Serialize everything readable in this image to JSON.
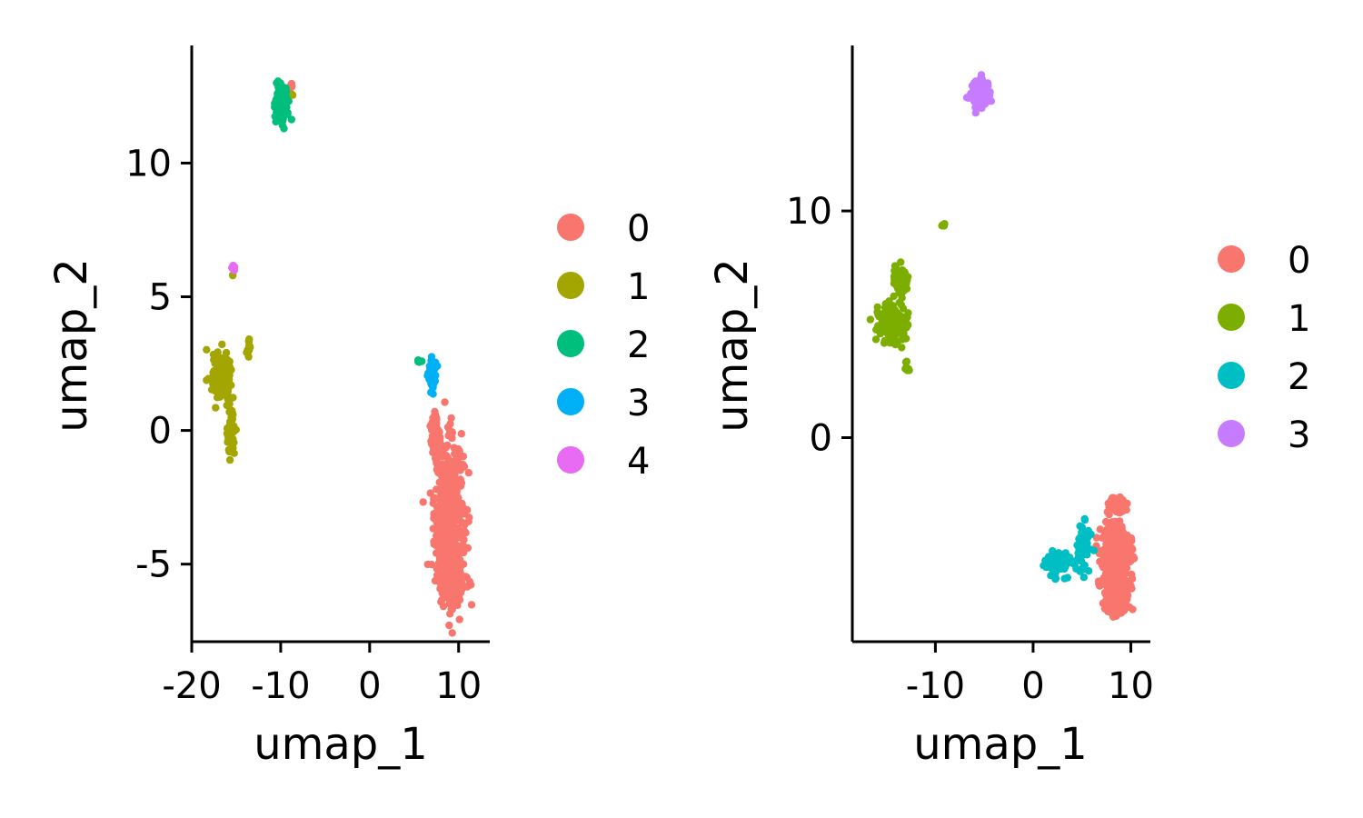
{
  "chart_data": [
    {
      "type": "scatter",
      "xlabel": "umap_1",
      "ylabel": "umap_2",
      "xlim": [
        -20,
        13.5
      ],
      "ylim": [
        -7.9,
        14.4
      ],
      "xticks": [
        -20,
        -10,
        0,
        10
      ],
      "xtick_labels": [
        "-20",
        "-10",
        "0",
        "10"
      ],
      "yticks": [
        -5,
        0,
        5,
        10
      ],
      "ytick_labels": [
        "-5",
        "0",
        "5",
        "10"
      ],
      "grid": false,
      "legend_position": "right",
      "series": [
        {
          "name": "0",
          "color": "#F8766D",
          "clusters": [
            {
              "center": [
                8.9,
                -3.2
              ],
              "spread": [
                1.5,
                2.6
              ],
              "n": 480
            },
            {
              "center": [
                9.2,
                -5.6
              ],
              "spread": [
                1.4,
                0.8
              ],
              "n": 160
            },
            {
              "center": [
                7.4,
                -0.2
              ],
              "spread": [
                0.5,
                0.9
              ],
              "n": 70
            },
            {
              "center": [
                -8.8,
                12.9
              ],
              "spread": [
                0.15,
                0.1
              ],
              "n": 4
            }
          ]
        },
        {
          "name": "1",
          "color": "#A3A500",
          "clusters": [
            {
              "center": [
                -16.6,
                2.0
              ],
              "spread": [
                1.0,
                0.7
              ],
              "n": 160
            },
            {
              "center": [
                -15.6,
                0.0
              ],
              "spread": [
                0.4,
                0.9
              ],
              "n": 60
            },
            {
              "center": [
                -13.6,
                3.1
              ],
              "spread": [
                0.3,
                0.4
              ],
              "n": 12
            },
            {
              "center": [
                -15.4,
                5.8
              ],
              "spread": [
                0.05,
                0.05
              ],
              "n": 2
            },
            {
              "center": [
                -8.7,
                12.5
              ],
              "spread": [
                0.1,
                0.1
              ],
              "n": 2
            }
          ]
        },
        {
          "name": "2",
          "color": "#00BF7D",
          "clusters": [
            {
              "center": [
                -9.9,
                12.2
              ],
              "spread": [
                0.6,
                0.6
              ],
              "n": 160
            },
            {
              "center": [
                5.6,
                2.6
              ],
              "spread": [
                0.4,
                0.1
              ],
              "n": 6
            }
          ]
        },
        {
          "name": "3",
          "color": "#00B0F6",
          "clusters": [
            {
              "center": [
                7.1,
                2.1
              ],
              "spread": [
                0.5,
                0.6
              ],
              "n": 45
            }
          ]
        },
        {
          "name": "4",
          "color": "#E76BF3",
          "clusters": [
            {
              "center": [
                -15.3,
                6.1
              ],
              "spread": [
                0.15,
                0.1
              ],
              "n": 6
            }
          ]
        }
      ]
    },
    {
      "type": "scatter",
      "xlabel": "umap_1",
      "ylabel": "umap_2",
      "xlim": [
        -18.5,
        12
      ],
      "ylim": [
        -9,
        17.3
      ],
      "xticks": [
        -10,
        0,
        10
      ],
      "xtick_labels": [
        "-10",
        "0",
        "10"
      ],
      "yticks": [
        0,
        10
      ],
      "ytick_labels": [
        "0",
        "10"
      ],
      "grid": false,
      "legend_position": "right",
      "series": [
        {
          "name": "0",
          "color": "#F8766D",
          "clusters": [
            {
              "center": [
                8.5,
                -5.5
              ],
              "spread": [
                1.3,
                1.5
              ],
              "n": 520
            },
            {
              "center": [
                8.6,
                -3.0
              ],
              "spread": [
                0.8,
                0.4
              ],
              "n": 60
            },
            {
              "center": [
                8.5,
                -7.6
              ],
              "spread": [
                1.0,
                0.3
              ],
              "n": 60
            }
          ]
        },
        {
          "name": "1",
          "color": "#7CAE00",
          "clusters": [
            {
              "center": [
                -14.5,
                5.0
              ],
              "spread": [
                1.3,
                0.8
              ],
              "n": 150
            },
            {
              "center": [
                -13.6,
                6.8
              ],
              "spread": [
                0.5,
                0.7
              ],
              "n": 70
            },
            {
              "center": [
                -12.9,
                3.0
              ],
              "spread": [
                0.3,
                0.3
              ],
              "n": 10
            },
            {
              "center": [
                -9.2,
                9.4
              ],
              "spread": [
                0.15,
                0.08
              ],
              "n": 6
            }
          ]
        },
        {
          "name": "2",
          "color": "#00BFC4",
          "clusters": [
            {
              "center": [
                2.5,
                -5.6
              ],
              "spread": [
                1.1,
                0.45
              ],
              "n": 100
            },
            {
              "center": [
                5.2,
                -4.6
              ],
              "spread": [
                0.6,
                0.9
              ],
              "n": 90
            }
          ]
        },
        {
          "name": "3",
          "color": "#C77CFF",
          "clusters": [
            {
              "center": [
                -5.4,
                15.2
              ],
              "spread": [
                0.8,
                0.5
              ],
              "n": 150
            }
          ]
        }
      ]
    }
  ]
}
